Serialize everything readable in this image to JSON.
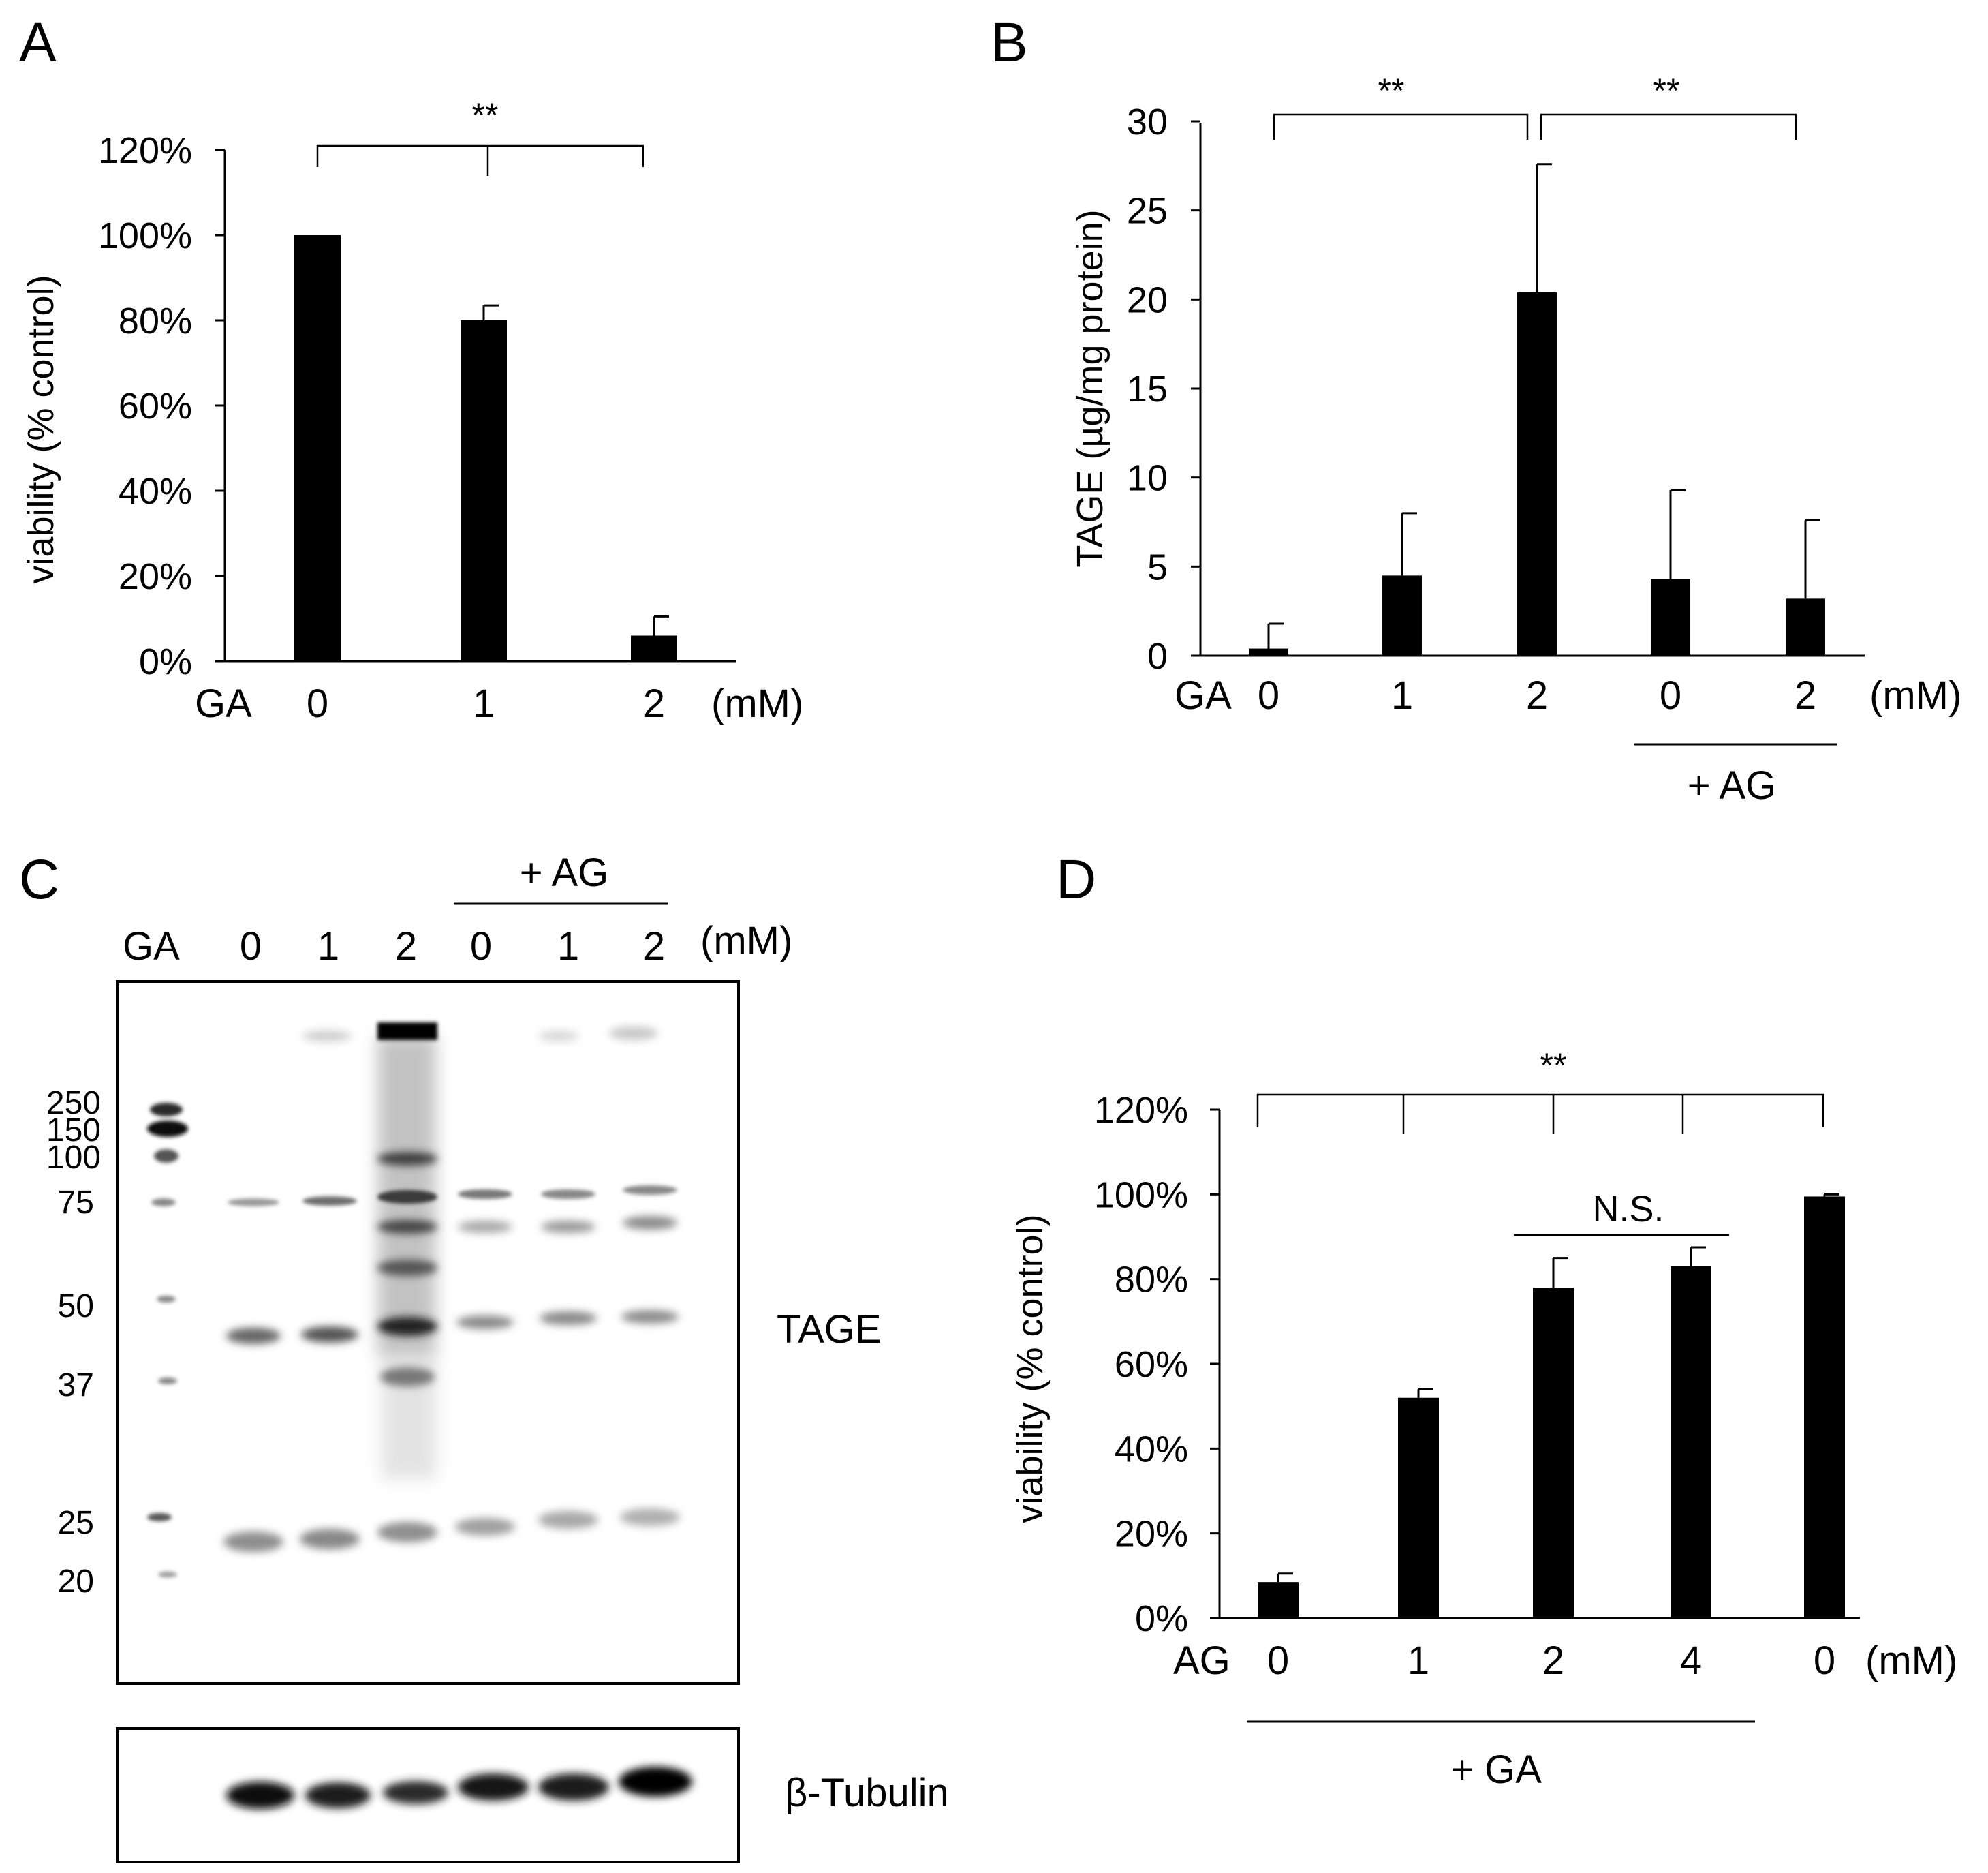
{
  "chart_data": [
    {
      "panel": "A",
      "type": "bar",
      "ylabel": "viability (% control)",
      "ylim": [
        0,
        120
      ],
      "yticks": [
        "0%",
        "20%",
        "40%",
        "60%",
        "80%",
        "100%",
        "120%"
      ],
      "x_prefix": "GA",
      "x_unit": "(mM)",
      "categories": [
        "0",
        "1",
        "2"
      ],
      "values": [
        100,
        80,
        6
      ],
      "errors": [
        0,
        3.5,
        4.5
      ],
      "significance": "**"
    },
    {
      "panel": "B",
      "type": "bar",
      "ylabel": "TAGE (µg/mg protein)",
      "ylim": [
        0,
        30
      ],
      "yticks": [
        "0",
        "5",
        "10",
        "15",
        "20",
        "25",
        "30"
      ],
      "x_prefix": "GA",
      "x_unit": "(mM)",
      "categories": [
        "0",
        "1",
        "2",
        "0",
        "2"
      ],
      "values": [
        0.4,
        4.5,
        20.4,
        4.3,
        3.2
      ],
      "errors": [
        1.4,
        3.5,
        7.2,
        5.0,
        4.4
      ],
      "group_label": "+ AG",
      "significance": [
        "**",
        "**"
      ]
    },
    {
      "panel": "D",
      "type": "bar",
      "ylabel": "viability (% control)",
      "ylim": [
        0,
        120
      ],
      "yticks": [
        "0%",
        "20%",
        "40%",
        "60%",
        "80%",
        "100%",
        "120%"
      ],
      "x_prefix": "AG",
      "x_unit": "(mM)",
      "categories": [
        "0",
        "1",
        "2",
        "4",
        "0"
      ],
      "values": [
        8.5,
        52,
        78,
        83,
        99.5
      ],
      "errors": [
        2,
        2,
        7,
        4.5,
        0.5
      ],
      "group_label": "+ GA",
      "significance": "**",
      "ns_label": "N.S."
    }
  ],
  "blot": {
    "panel": "C",
    "lane_prefix": "GA",
    "lanes": [
      "0",
      "1",
      "2",
      "0",
      "1",
      "2"
    ],
    "unit": "(mM)",
    "group_label": "+ AG",
    "markers": [
      "250",
      "150",
      "100",
      "75",
      "50",
      "37",
      "25",
      "20"
    ],
    "main_label": "TAGE",
    "loading_label": "β-Tubulin"
  }
}
